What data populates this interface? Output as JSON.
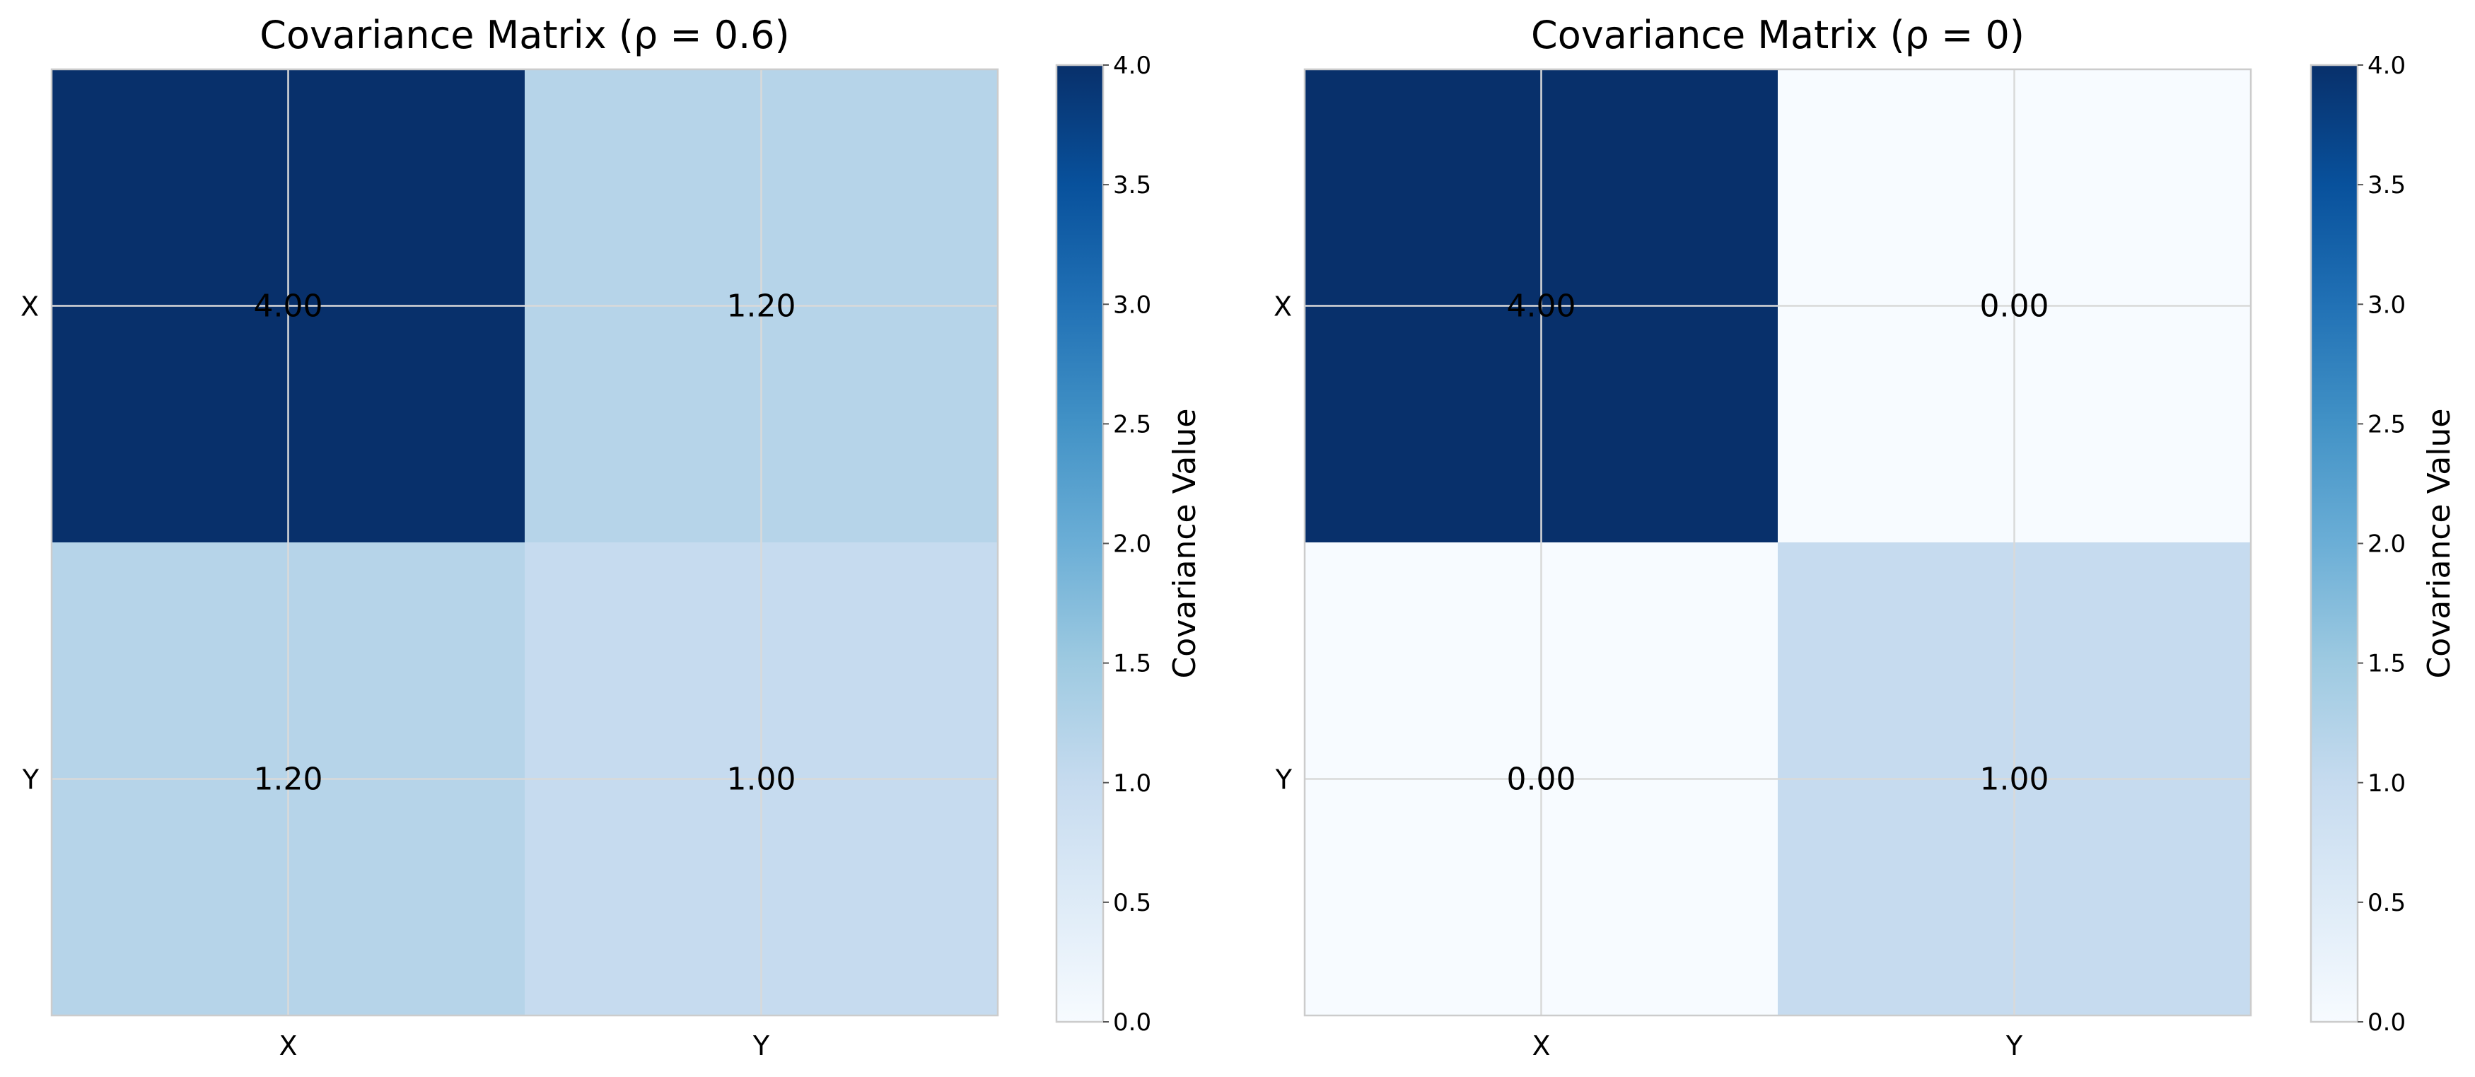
{
  "colors": {
    "colormap": [
      "#f7fbff",
      "#deebf7",
      "#c6dbef",
      "#9ecae1",
      "#6baed6",
      "#4292c6",
      "#2171b5",
      "#08519c",
      "#08306b"
    ],
    "grid": "#d9d9d9",
    "spine": "#cccccc",
    "text": "#000000"
  },
  "chart_data": [
    {
      "type": "heatmap",
      "title": "Covariance Matrix (ρ = 0.6)",
      "x_categories": [
        "X",
        "Y"
      ],
      "y_categories": [
        "X",
        "Y"
      ],
      "values": [
        [
          4.0,
          1.2
        ],
        [
          1.2,
          1.0
        ]
      ],
      "cell_labels": [
        [
          "4.00",
          "1.20"
        ],
        [
          "1.20",
          "1.00"
        ]
      ],
      "colormap": "Blues",
      "color_range": [
        0,
        4
      ],
      "grid": true,
      "colorbar": {
        "label": "Covariance Value",
        "ticks": [
          0,
          0.5,
          1,
          1.5,
          2,
          2.5,
          3,
          3.5,
          4
        ],
        "tick_labels": [
          "0.0",
          "0.5",
          "1.0",
          "1.5",
          "2.0",
          "2.5",
          "3.0",
          "3.5",
          "4.0"
        ]
      }
    },
    {
      "type": "heatmap",
      "title": "Covariance Matrix (ρ = 0)",
      "x_categories": [
        "X",
        "Y"
      ],
      "y_categories": [
        "X",
        "Y"
      ],
      "values": [
        [
          4.0,
          0.0
        ],
        [
          0.0,
          1.0
        ]
      ],
      "cell_labels": [
        [
          "4.00",
          "0.00"
        ],
        [
          "0.00",
          "1.00"
        ]
      ],
      "colormap": "Blues",
      "color_range": [
        0,
        4
      ],
      "grid": true,
      "colorbar": {
        "label": "Covariance Value",
        "ticks": [
          0,
          0.5,
          1,
          1.5,
          2,
          2.5,
          3,
          3.5,
          4
        ],
        "tick_labels": [
          "0.0",
          "0.5",
          "1.0",
          "1.5",
          "2.0",
          "2.5",
          "3.0",
          "3.5",
          "4.0"
        ]
      }
    }
  ]
}
